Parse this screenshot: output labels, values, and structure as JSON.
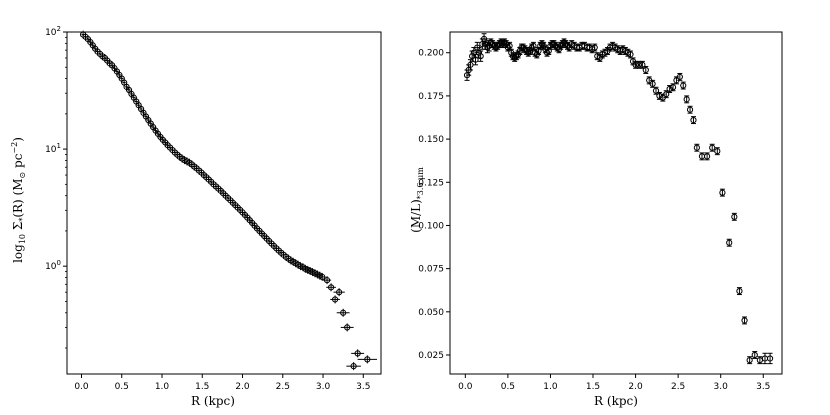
{
  "chart_data": [
    {
      "type": "scatter",
      "xlabel": "R (kpc)",
      "ylabel": "log10 Σ*(R) (M⊙ pc−2)",
      "ylabel_parts": {
        "log": "log",
        "sub": "10",
        "sigma": " Σ",
        "star": "*",
        "mid": "(R) (M",
        "sun": "⊙",
        "unit": " pc",
        "exp": "−2",
        "end": ")"
      },
      "yscale": "log",
      "xlim": [
        -0.18,
        3.72
      ],
      "ylim": [
        0.12,
        100
      ],
      "xticks": [
        0.0,
        0.5,
        1.0,
        1.5,
        2.0,
        2.5,
        3.0,
        3.5
      ],
      "xtick_labels": [
        "0.0",
        "0.5",
        "1.0",
        "1.5",
        "2.0",
        "2.5",
        "3.0",
        "3.5"
      ],
      "ytick_labels": [
        {
          "base": "10",
          "exp": "2",
          "value": 100
        },
        {
          "base": "10",
          "exp": "1",
          "value": 10
        },
        {
          "base": "10",
          "exp": "0",
          "value": 1
        }
      ],
      "x": [
        0.02,
        0.05,
        0.08,
        0.11,
        0.14,
        0.17,
        0.2,
        0.23,
        0.26,
        0.29,
        0.32,
        0.35,
        0.38,
        0.41,
        0.44,
        0.47,
        0.5,
        0.53,
        0.56,
        0.59,
        0.62,
        0.65,
        0.68,
        0.71,
        0.74,
        0.77,
        0.8,
        0.83,
        0.86,
        0.89,
        0.92,
        0.95,
        0.98,
        1.01,
        1.04,
        1.07,
        1.1,
        1.13,
        1.16,
        1.19,
        1.22,
        1.25,
        1.28,
        1.31,
        1.34,
        1.37,
        1.4,
        1.43,
        1.46,
        1.49,
        1.52,
        1.55,
        1.58,
        1.61,
        1.64,
        1.67,
        1.7,
        1.73,
        1.76,
        1.79,
        1.82,
        1.85,
        1.88,
        1.91,
        1.94,
        1.97,
        2.0,
        2.03,
        2.06,
        2.09,
        2.12,
        2.15,
        2.18,
        2.21,
        2.24,
        2.27,
        2.3,
        2.33,
        2.36,
        2.39,
        2.42,
        2.45,
        2.48,
        2.51,
        2.54,
        2.57,
        2.6,
        2.63,
        2.66,
        2.69,
        2.72,
        2.75,
        2.78,
        2.81,
        2.84,
        2.87,
        2.9,
        2.93,
        2.96,
        2.99,
        3.05,
        3.1,
        3.15,
        3.2,
        3.25,
        3.3,
        3.38,
        3.43,
        3.55
      ],
      "y": [
        95,
        91,
        87,
        82,
        77,
        72,
        68,
        65,
        62,
        60,
        57,
        54,
        52,
        49,
        46,
        43,
        40,
        37,
        34,
        32,
        29.6,
        27.5,
        25.5,
        23.7,
        22,
        20.4,
        19,
        17.7,
        16.5,
        15.4,
        14.4,
        13.5,
        12.7,
        12.0,
        11.4,
        10.8,
        10.3,
        9.8,
        9.35,
        8.95,
        8.6,
        8.3,
        8.05,
        7.85,
        7.65,
        7.4,
        7.1,
        6.85,
        6.55,
        6.3,
        6.0,
        5.75,
        5.5,
        5.25,
        5.0,
        4.8,
        4.6,
        4.4,
        4.2,
        4.0,
        3.82,
        3.65,
        3.48,
        3.32,
        3.17,
        3.02,
        2.88,
        2.74,
        2.6,
        2.47,
        2.34,
        2.22,
        2.1,
        2.0,
        1.9,
        1.81,
        1.72,
        1.64,
        1.56,
        1.49,
        1.42,
        1.36,
        1.3,
        1.25,
        1.2,
        1.16,
        1.12,
        1.09,
        1.06,
        1.03,
        1.0,
        0.98,
        0.95,
        0.93,
        0.91,
        0.89,
        0.87,
        0.85,
        0.83,
        0.81,
        0.76,
        0.66,
        0.52,
        0.6,
        0.4,
        0.3,
        0.14,
        0.18,
        0.16
      ],
      "xerr": [
        0.02,
        0.02,
        0.02,
        0.02,
        0.02,
        0.02,
        0.02,
        0.02,
        0.02,
        0.02,
        0.02,
        0.02,
        0.02,
        0.02,
        0.02,
        0.02,
        0.02,
        0.02,
        0.02,
        0.02,
        0.02,
        0.02,
        0.02,
        0.02,
        0.02,
        0.02,
        0.02,
        0.02,
        0.02,
        0.02,
        0.02,
        0.02,
        0.02,
        0.02,
        0.02,
        0.02,
        0.02,
        0.02,
        0.02,
        0.02,
        0.02,
        0.02,
        0.02,
        0.02,
        0.02,
        0.02,
        0.02,
        0.02,
        0.02,
        0.02,
        0.02,
        0.02,
        0.02,
        0.02,
        0.02,
        0.02,
        0.02,
        0.02,
        0.02,
        0.02,
        0.02,
        0.02,
        0.02,
        0.02,
        0.02,
        0.02,
        0.02,
        0.02,
        0.02,
        0.02,
        0.02,
        0.02,
        0.02,
        0.02,
        0.02,
        0.02,
        0.02,
        0.02,
        0.02,
        0.02,
        0.02,
        0.02,
        0.02,
        0.02,
        0.02,
        0.02,
        0.02,
        0.02,
        0.02,
        0.02,
        0.03,
        0.03,
        0.03,
        0.03,
        0.03,
        0.03,
        0.03,
        0.03,
        0.03,
        0.04,
        0.05,
        0.06,
        0.06,
        0.07,
        0.08,
        0.08,
        0.09,
        0.08,
        0.12
      ]
    },
    {
      "type": "scatter",
      "xlabel": "R (kpc)",
      "ylabel": "(M/L)*3.6μm",
      "ylabel_parts": {
        "main": "(M/L)",
        "sub": "*3.6 μm"
      },
      "yscale": "linear",
      "xlim": [
        -0.18,
        3.72
      ],
      "ylim": [
        0.014,
        0.212
      ],
      "xticks": [
        0.0,
        0.5,
        1.0,
        1.5,
        2.0,
        2.5,
        3.0,
        3.5
      ],
      "xtick_labels": [
        "0.0",
        "0.5",
        "1.0",
        "1.5",
        "2.0",
        "2.5",
        "3.0",
        "3.5"
      ],
      "yticks": [
        0.025,
        0.05,
        0.075,
        0.1,
        0.125,
        0.15,
        0.175,
        0.2
      ],
      "ytick_labels": [
        "0.025",
        "0.050",
        "0.075",
        "0.100",
        "0.125",
        "0.150",
        "0.175",
        "0.200"
      ],
      "x": [
        0.02,
        0.04,
        0.06,
        0.08,
        0.1,
        0.12,
        0.14,
        0.16,
        0.18,
        0.2,
        0.22,
        0.24,
        0.26,
        0.28,
        0.3,
        0.32,
        0.34,
        0.36,
        0.38,
        0.4,
        0.42,
        0.44,
        0.46,
        0.48,
        0.5,
        0.52,
        0.54,
        0.56,
        0.58,
        0.6,
        0.62,
        0.64,
        0.66,
        0.68,
        0.7,
        0.72,
        0.74,
        0.76,
        0.78,
        0.8,
        0.82,
        0.84,
        0.86,
        0.88,
        0.9,
        0.92,
        0.94,
        0.96,
        0.98,
        1.0,
        1.02,
        1.04,
        1.06,
        1.08,
        1.1,
        1.12,
        1.14,
        1.16,
        1.18,
        1.2,
        1.22,
        1.25,
        1.28,
        1.31,
        1.34,
        1.37,
        1.4,
        1.43,
        1.46,
        1.49,
        1.52,
        1.55,
        1.58,
        1.61,
        1.64,
        1.67,
        1.7,
        1.73,
        1.76,
        1.79,
        1.82,
        1.85,
        1.88,
        1.91,
        1.94,
        1.97,
        2.0,
        2.04,
        2.08,
        2.12,
        2.16,
        2.2,
        2.24,
        2.28,
        2.32,
        2.36,
        2.4,
        2.44,
        2.48,
        2.52,
        2.56,
        2.6,
        2.64,
        2.68,
        2.72,
        2.78,
        2.84,
        2.9,
        2.96,
        3.02,
        3.1,
        3.16,
        3.22,
        3.28,
        3.34,
        3.4,
        3.46,
        3.52,
        3.58
      ],
      "y": [
        0.187,
        0.19,
        0.193,
        0.198,
        0.2,
        0.196,
        0.203,
        0.2,
        0.198,
        0.205,
        0.208,
        0.205,
        0.203,
        0.204,
        0.206,
        0.205,
        0.204,
        0.203,
        0.204,
        0.205,
        0.206,
        0.205,
        0.206,
        0.205,
        0.203,
        0.204,
        0.2,
        0.198,
        0.197,
        0.198,
        0.199,
        0.201,
        0.203,
        0.203,
        0.202,
        0.201,
        0.2,
        0.201,
        0.203,
        0.204,
        0.2,
        0.199,
        0.201,
        0.204,
        0.205,
        0.204,
        0.202,
        0.2,
        0.201,
        0.204,
        0.205,
        0.205,
        0.204,
        0.203,
        0.202,
        0.204,
        0.205,
        0.206,
        0.205,
        0.204,
        0.203,
        0.205,
        0.204,
        0.203,
        0.203,
        0.204,
        0.204,
        0.203,
        0.203,
        0.202,
        0.203,
        0.198,
        0.197,
        0.199,
        0.2,
        0.201,
        0.203,
        0.204,
        0.203,
        0.202,
        0.201,
        0.202,
        0.201,
        0.2,
        0.199,
        0.195,
        0.193,
        0.193,
        0.193,
        0.19,
        0.184,
        0.182,
        0.178,
        0.175,
        0.174,
        0.176,
        0.179,
        0.18,
        0.184,
        0.186,
        0.181,
        0.173,
        0.167,
        0.161,
        0.145,
        0.14,
        0.14,
        0.145,
        0.143,
        0.119,
        0.09,
        0.105,
        0.062,
        0.045,
        0.022,
        0.025,
        0.022,
        0.023,
        0.023
      ],
      "yerr": [
        0.003,
        0.003,
        0.003,
        0.003,
        0.003,
        0.003,
        0.003,
        0.003,
        0.003,
        0.003,
        0.003,
        0.003,
        0.003,
        0.003,
        0.002,
        0.002,
        0.002,
        0.002,
        0.002,
        0.002,
        0.002,
        0.002,
        0.002,
        0.002,
        0.002,
        0.002,
        0.002,
        0.002,
        0.002,
        0.002,
        0.002,
        0.002,
        0.002,
        0.002,
        0.002,
        0.002,
        0.002,
        0.002,
        0.002,
        0.002,
        0.002,
        0.002,
        0.002,
        0.002,
        0.002,
        0.002,
        0.002,
        0.002,
        0.002,
        0.002,
        0.002,
        0.002,
        0.002,
        0.002,
        0.002,
        0.002,
        0.002,
        0.002,
        0.002,
        0.002,
        0.002,
        0.002,
        0.002,
        0.002,
        0.002,
        0.002,
        0.002,
        0.002,
        0.002,
        0.002,
        0.002,
        0.002,
        0.002,
        0.002,
        0.002,
        0.002,
        0.002,
        0.002,
        0.002,
        0.002,
        0.002,
        0.002,
        0.002,
        0.002,
        0.002,
        0.002,
        0.002,
        0.002,
        0.002,
        0.002,
        0.002,
        0.002,
        0.002,
        0.002,
        0.002,
        0.002,
        0.002,
        0.002,
        0.002,
        0.002,
        0.002,
        0.002,
        0.002,
        0.002,
        0.002,
        0.002,
        0.002,
        0.002,
        0.002,
        0.002,
        0.002,
        0.002,
        0.002,
        0.002,
        0.002,
        0.002,
        0.002,
        0.003,
        0.003
      ]
    }
  ]
}
